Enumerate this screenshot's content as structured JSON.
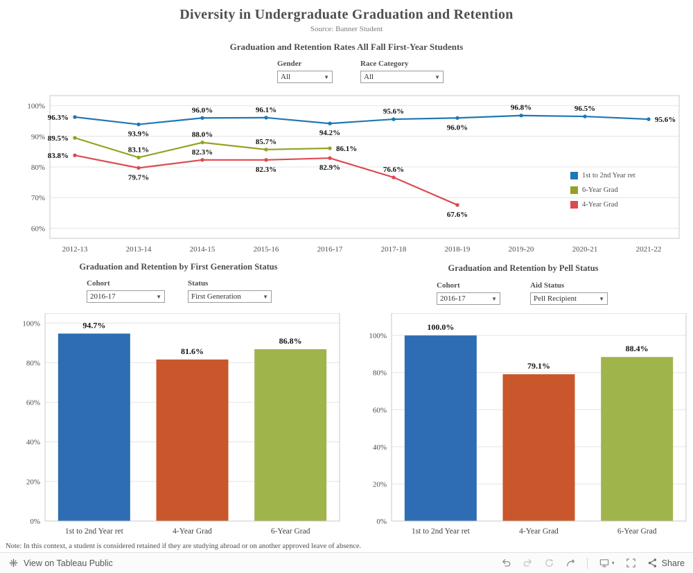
{
  "page": {
    "title": "Diversity in Undergraduate Graduation and Retention",
    "subtitle": "Source: Banner Student",
    "note": "Note: In this context, a student is considered retained if they are studying abroad or on another approved leave of absence."
  },
  "top_filters": {
    "gender": {
      "label": "Gender",
      "value": "All"
    },
    "race": {
      "label": "Race Category",
      "value": "All"
    }
  },
  "first_gen_filters": {
    "cohort": {
      "label": "Cohort",
      "value": "2016-17"
    },
    "status": {
      "label": "Status",
      "value": "First Generation"
    }
  },
  "pell_filters": {
    "cohort": {
      "label": "Cohort",
      "value": "2016-17"
    },
    "aid": {
      "label": "Aid Status",
      "value": "Pell Recipient"
    }
  },
  "chart_data": [
    {
      "id": "retention-lines",
      "type": "line",
      "title": "Graduation and Retention Rates All Fall First-Year Students",
      "x": [
        "2012-13",
        "2013-14",
        "2014-15",
        "2015-16",
        "2016-17",
        "2017-18",
        "2018-19",
        "2019-20",
        "2020-21",
        "2021-22"
      ],
      "series": [
        {
          "name": "1st to 2nd Year ret",
          "color": "#1f77b4",
          "values": [
            96.3,
            93.9,
            96.0,
            96.1,
            94.2,
            95.6,
            96.0,
            96.8,
            96.5,
            95.6
          ],
          "label_pos": [
            "left",
            "below",
            "above",
            "above",
            "below",
            "above",
            "below",
            "above",
            "above",
            "right"
          ]
        },
        {
          "name": "6-Year Grad",
          "color": "#94a223",
          "values": [
            89.5,
            83.1,
            88.0,
            85.7,
            86.1
          ],
          "label_pos": [
            "left",
            "above",
            "above",
            "above",
            "right"
          ]
        },
        {
          "name": "4-Year Grad",
          "color": "#dc4a52",
          "values": [
            83.8,
            79.7,
            82.3,
            82.3,
            82.9,
            76.6,
            67.6
          ],
          "label_pos": [
            "left",
            "below",
            "above",
            "below",
            "below",
            "above",
            "below"
          ]
        }
      ],
      "yticks": [
        100,
        90,
        80,
        70,
        60
      ],
      "ylim": [
        56.7,
        103.3
      ],
      "grid": true,
      "legend_position": "inside-right"
    },
    {
      "id": "first-generation-bars",
      "type": "bar",
      "title": "Graduation and Retention by First Generation Status",
      "categories": [
        "1st to 2nd Year ret",
        "4-Year Grad",
        "6-Year Grad"
      ],
      "values": [
        94.7,
        81.6,
        86.8
      ],
      "colors": [
        "#2e6db4",
        "#c9572b",
        "#9fb54c"
      ],
      "yticks": [
        0,
        20,
        40,
        60,
        80,
        100
      ],
      "ylim": [
        0,
        105
      ],
      "grid": true
    },
    {
      "id": "pell-bars",
      "type": "bar",
      "title": "Graduation and Retention by Pell Status",
      "categories": [
        "1st to 2nd Year ret",
        "4-Year Grad",
        "6-Year Grad"
      ],
      "values": [
        100.0,
        79.1,
        88.4
      ],
      "colors": [
        "#2e6db4",
        "#c9572b",
        "#9fb54c"
      ],
      "yticks": [
        0,
        20,
        40,
        60,
        80,
        100
      ],
      "ylim": [
        0,
        112
      ],
      "grid": true
    }
  ],
  "toolbar": {
    "view_on_label": "View on Tableau Public",
    "share_label": "Share",
    "icons": [
      "tableau-logo-icon",
      "undo-icon",
      "redo-icon",
      "revert-icon",
      "refresh-icon",
      "device-preview-icon",
      "chevron-down-icon",
      "fullscreen-icon",
      "share-icon"
    ]
  }
}
